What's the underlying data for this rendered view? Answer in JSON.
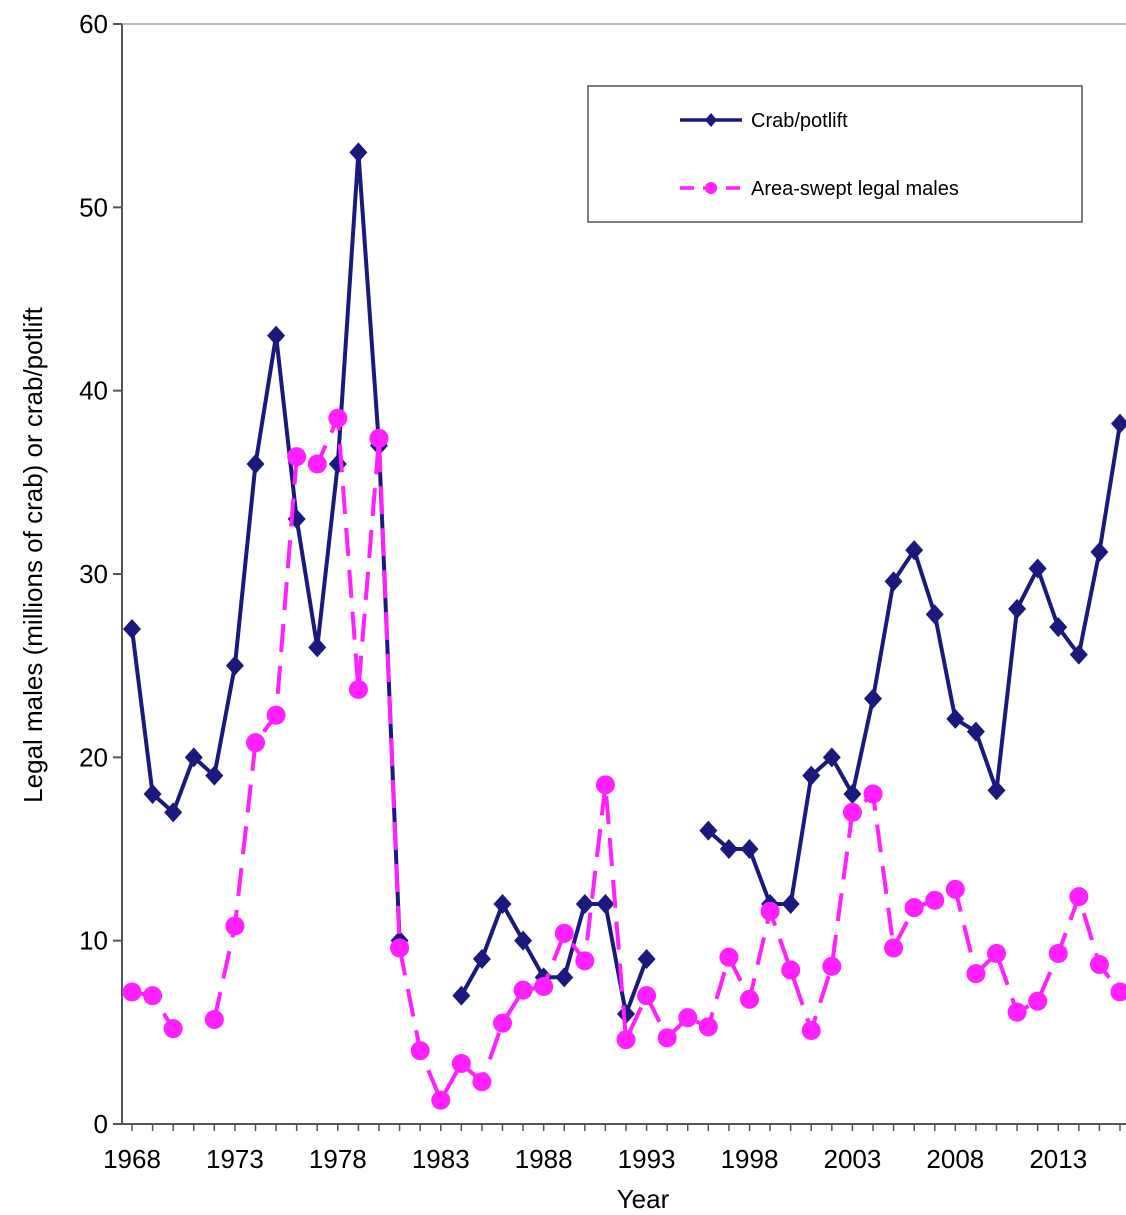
{
  "chart_data": {
    "type": "line",
    "xlabel": "Year",
    "ylabel": "Legal males (millions of crab) or crab/potlift",
    "xlim": [
      1968,
      2016
    ],
    "ylim": [
      0,
      60
    ],
    "x_ticks": [
      1968,
      1973,
      1978,
      1983,
      1988,
      1993,
      1998,
      2003,
      2008,
      2013
    ],
    "y_ticks": [
      0,
      10,
      20,
      30,
      40,
      50,
      60
    ],
    "legend_position": "top-right",
    "series": [
      {
        "name": "Crab/potlift",
        "color": "#1a1a7e",
        "style": "solid",
        "marker": "diamond",
        "points": [
          [
            1968,
            27
          ],
          [
            1969,
            18
          ],
          [
            1970,
            17
          ],
          [
            1971,
            20
          ],
          [
            1972,
            19
          ],
          [
            1973,
            25
          ],
          [
            1974,
            36
          ],
          [
            1975,
            43
          ],
          [
            1976,
            33
          ],
          [
            1977,
            26
          ],
          [
            1978,
            36
          ],
          [
            1979,
            53
          ],
          [
            1980,
            37
          ],
          [
            1981,
            10
          ],
          null,
          [
            1984,
            7
          ],
          [
            1985,
            9
          ],
          [
            1986,
            12
          ],
          [
            1987,
            10
          ],
          [
            1988,
            8
          ],
          [
            1989,
            8
          ],
          [
            1990,
            12
          ],
          [
            1991,
            12
          ],
          [
            1992,
            6
          ],
          [
            1993,
            9
          ],
          null,
          [
            1996,
            16
          ],
          [
            1997,
            15
          ],
          [
            1998,
            15
          ],
          [
            1999,
            12
          ],
          [
            2000,
            12
          ],
          [
            2001,
            19
          ],
          [
            2002,
            20
          ],
          [
            2003,
            18
          ],
          [
            2004,
            23.2
          ],
          [
            2005,
            29.6
          ],
          [
            2006,
            31.3
          ],
          [
            2007,
            27.8
          ],
          [
            2008,
            22.1
          ],
          [
            2009,
            21.4
          ],
          [
            2010,
            18.2
          ],
          [
            2011,
            28.1
          ],
          [
            2012,
            30.3
          ],
          [
            2013,
            27.1
          ],
          [
            2014,
            25.6
          ],
          [
            2015,
            31.2
          ],
          [
            2016,
            38.2
          ]
        ]
      },
      {
        "name": "Area-swept legal males",
        "color": "#ff1fff",
        "style": "dashed",
        "marker": "circle",
        "points": [
          [
            1968,
            7.2
          ],
          [
            1969,
            7
          ],
          [
            1970,
            5.2
          ],
          null,
          [
            1972,
            5.7
          ],
          [
            1973,
            10.8
          ],
          [
            1974,
            20.8
          ],
          [
            1975,
            22.3
          ],
          [
            1976,
            36.4
          ],
          [
            1977,
            36
          ],
          [
            1978,
            38.5
          ],
          [
            1979,
            23.7
          ],
          [
            1980,
            37.4
          ],
          [
            1981,
            9.6
          ],
          [
            1982,
            4
          ],
          [
            1983,
            1.3
          ],
          [
            1984,
            3.3
          ],
          [
            1985,
            2.3
          ],
          [
            1986,
            5.5
          ],
          [
            1987,
            7.3
          ],
          [
            1988,
            7.5
          ],
          [
            1989,
            10.4
          ],
          [
            1990,
            8.9
          ],
          [
            1991,
            18.5
          ],
          [
            1992,
            4.6
          ],
          [
            1993,
            7
          ],
          [
            1994,
            4.7
          ],
          [
            1995,
            5.8
          ],
          [
            1996,
            5.3
          ],
          [
            1997,
            9.1
          ],
          [
            1998,
            6.8
          ],
          [
            1999,
            11.6
          ],
          [
            2000,
            8.4
          ],
          [
            2001,
            5.1
          ],
          [
            2002,
            8.6
          ],
          [
            2003,
            17
          ],
          [
            2004,
            18
          ],
          [
            2005,
            9.6
          ],
          [
            2006,
            11.8
          ],
          [
            2007,
            12.2
          ],
          [
            2008,
            12.8
          ],
          [
            2009,
            8.2
          ],
          [
            2010,
            9.3
          ],
          [
            2011,
            6.1
          ],
          [
            2012,
            6.7
          ],
          [
            2013,
            9.3
          ],
          [
            2014,
            12.4
          ],
          [
            2015,
            8.7
          ],
          [
            2016,
            7.2
          ]
        ]
      }
    ]
  }
}
